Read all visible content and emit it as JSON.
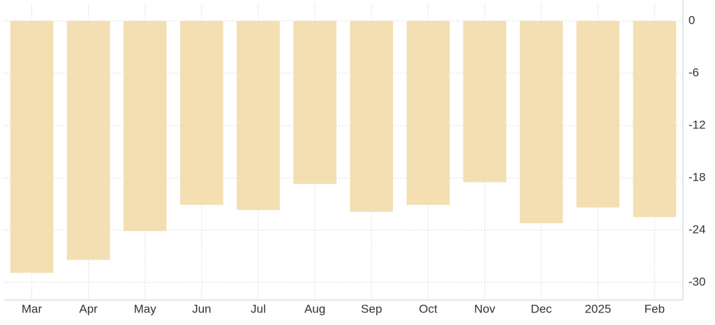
{
  "chart_data": {
    "type": "bar",
    "categories": [
      "Mar",
      "Apr",
      "May",
      "Jun",
      "Jul",
      "Aug",
      "Sep",
      "Oct",
      "Nov",
      "Dec",
      "2025",
      "Feb"
    ],
    "values": [
      -28.9,
      -27.4,
      -24.1,
      -21.1,
      -21.7,
      -18.7,
      -21.9,
      -21.1,
      -18.5,
      -23.2,
      -21.4,
      -22.5
    ],
    "color": "#f3dfb2",
    "ylim": [
      -32,
      2
    ],
    "yticks": [
      0,
      -6,
      -12,
      -18,
      -24,
      -30
    ],
    "grid": true
  }
}
